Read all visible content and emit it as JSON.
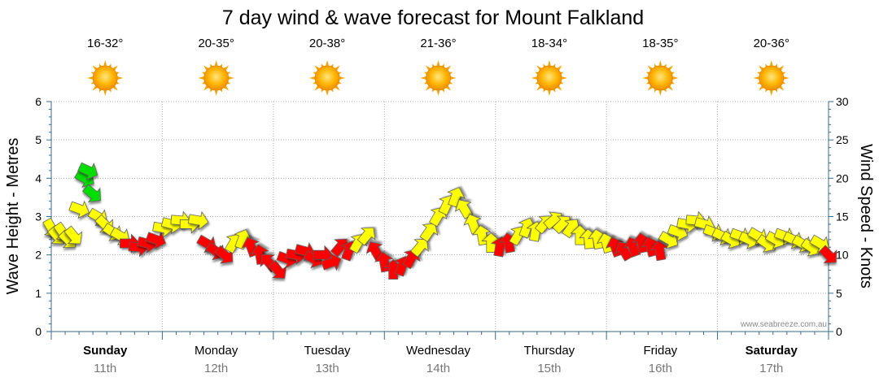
{
  "chart_data": {
    "type": "line",
    "title": "7 day wind & wave forecast for Mount Falkland",
    "ylabel_left": "Wave Height - Metres",
    "ylabel_right": "Wind Speed - Knots",
    "ylim_left": [
      0,
      6
    ],
    "ylim_right": [
      0,
      30
    ],
    "yticks_left": [
      "0",
      "1",
      "2",
      "3",
      "4",
      "5",
      "6"
    ],
    "yticks_right": [
      "0",
      "5",
      "10",
      "15",
      "20",
      "25",
      "30"
    ],
    "grid": true,
    "watermark": "www.seabreeze.com.au",
    "days": [
      {
        "day": "Sunday",
        "date": "11th",
        "temp": "16-32°",
        "icon": "sun-icon",
        "bold": true
      },
      {
        "day": "Monday",
        "date": "12th",
        "temp": "20-35°",
        "icon": "sun-icon",
        "bold": false
      },
      {
        "day": "Tuesday",
        "date": "13th",
        "temp": "20-38°",
        "icon": "sun-icon",
        "bold": false
      },
      {
        "day": "Wednesday",
        "date": "14th",
        "temp": "21-36°",
        "icon": "sun-icon",
        "bold": false
      },
      {
        "day": "Thursday",
        "date": "15th",
        "temp": "18-34°",
        "icon": "sun-icon",
        "bold": false
      },
      {
        "day": "Friday",
        "date": "16th",
        "temp": "18-35°",
        "icon": "sun-icon",
        "bold": false
      },
      {
        "day": "Saturday",
        "date": "17th",
        "temp": "20-36°",
        "icon": "sun-icon",
        "bold": true
      }
    ],
    "colors": {
      "light": "#ff0000",
      "moderate": "#ffff00",
      "strong": "#00dd00",
      "grid": "#aaaaaa",
      "axis": "#3a6b8c"
    },
    "wind_series": {
      "name": "Wind Speed - Knots",
      "points": [
        {
          "t": 0.0,
          "knots": 13.5,
          "dir": 330,
          "cat": "moderate"
        },
        {
          "t": 0.05,
          "knots": 12.5,
          "dir": 320,
          "cat": "moderate"
        },
        {
          "t": 0.1,
          "knots": 13.0,
          "dir": 325,
          "cat": "moderate"
        },
        {
          "t": 0.15,
          "knots": 12.0,
          "dir": 315,
          "cat": "moderate"
        },
        {
          "t": 0.2,
          "knots": 12.5,
          "dir": 320,
          "cat": "moderate"
        },
        {
          "t": 0.25,
          "knots": 16.0,
          "dir": 290,
          "cat": "moderate"
        },
        {
          "t": 0.3,
          "knots": 20.0,
          "dir": 300,
          "cat": "strong"
        },
        {
          "t": 0.33,
          "knots": 21.0,
          "dir": 295,
          "cat": "strong"
        },
        {
          "t": 0.37,
          "knots": 18.0,
          "dir": 310,
          "cat": "strong"
        },
        {
          "t": 0.42,
          "knots": 15.0,
          "dir": 300,
          "cat": "moderate"
        },
        {
          "t": 0.48,
          "knots": 14.0,
          "dir": 315,
          "cat": "moderate"
        },
        {
          "t": 0.55,
          "knots": 13.0,
          "dir": 305,
          "cat": "moderate"
        },
        {
          "t": 0.62,
          "knots": 12.5,
          "dir": 300,
          "cat": "moderate"
        },
        {
          "t": 0.7,
          "knots": 11.5,
          "dir": 270,
          "cat": "light"
        },
        {
          "t": 0.78,
          "knots": 11.0,
          "dir": 275,
          "cat": "light"
        },
        {
          "t": 0.86,
          "knots": 11.5,
          "dir": 285,
          "cat": "light"
        },
        {
          "t": 0.94,
          "knots": 12.0,
          "dir": 290,
          "cat": "light"
        },
        {
          "t": 1.0,
          "knots": 13.5,
          "dir": 280,
          "cat": "moderate"
        },
        {
          "t": 1.08,
          "knots": 14.0,
          "dir": 285,
          "cat": "moderate"
        },
        {
          "t": 1.16,
          "knots": 14.5,
          "dir": 275,
          "cat": "moderate"
        },
        {
          "t": 1.24,
          "knots": 14.0,
          "dir": 270,
          "cat": "moderate"
        },
        {
          "t": 1.32,
          "knots": 14.5,
          "dir": 280,
          "cat": "moderate"
        },
        {
          "t": 1.4,
          "knots": 11.5,
          "dir": 300,
          "cat": "light"
        },
        {
          "t": 1.48,
          "knots": 10.5,
          "dir": 305,
          "cat": "light"
        },
        {
          "t": 1.56,
          "knots": 10.0,
          "dir": 310,
          "cat": "light"
        },
        {
          "t": 1.64,
          "knots": 11.5,
          "dir": 210,
          "cat": "moderate"
        },
        {
          "t": 1.72,
          "knots": 12.0,
          "dir": 200,
          "cat": "moderate"
        },
        {
          "t": 1.8,
          "knots": 11.0,
          "dir": 160,
          "cat": "light"
        },
        {
          "t": 1.88,
          "knots": 10.0,
          "dir": 170,
          "cat": "light"
        },
        {
          "t": 1.96,
          "knots": 9.0,
          "dir": 140,
          "cat": "light"
        },
        {
          "t": 2.04,
          "knots": 8.0,
          "dir": 320,
          "cat": "light"
        },
        {
          "t": 2.12,
          "knots": 9.5,
          "dir": 290,
          "cat": "light"
        },
        {
          "t": 2.2,
          "knots": 10.0,
          "dir": 280,
          "cat": "light"
        },
        {
          "t": 2.28,
          "knots": 10.5,
          "dir": 285,
          "cat": "light"
        },
        {
          "t": 2.36,
          "knots": 9.5,
          "dir": 300,
          "cat": "light"
        },
        {
          "t": 2.44,
          "knots": 10.0,
          "dir": 270,
          "cat": "light"
        },
        {
          "t": 2.52,
          "knots": 9.0,
          "dir": 250,
          "cat": "light"
        },
        {
          "t": 2.6,
          "knots": 11.0,
          "dir": 220,
          "cat": "light"
        },
        {
          "t": 2.68,
          "knots": 10.5,
          "dir": 200,
          "cat": "light"
        },
        {
          "t": 2.76,
          "knots": 11.5,
          "dir": 210,
          "cat": "moderate"
        },
        {
          "t": 2.84,
          "knots": 12.5,
          "dir": 220,
          "cat": "moderate"
        },
        {
          "t": 2.92,
          "knots": 10.5,
          "dir": 150,
          "cat": "light"
        },
        {
          "t": 3.0,
          "knots": 9.0,
          "dir": 170,
          "cat": "light"
        },
        {
          "t": 3.08,
          "knots": 8.0,
          "dir": 180,
          "cat": "light"
        },
        {
          "t": 3.16,
          "knots": 8.5,
          "dir": 200,
          "cat": "light"
        },
        {
          "t": 3.24,
          "knots": 9.5,
          "dir": 210,
          "cat": "light"
        },
        {
          "t": 3.32,
          "knots": 11.0,
          "dir": 220,
          "cat": "moderate"
        },
        {
          "t": 3.4,
          "knots": 13.0,
          "dir": 215,
          "cat": "moderate"
        },
        {
          "t": 3.48,
          "knots": 15.0,
          "dir": 210,
          "cat": "moderate"
        },
        {
          "t": 3.56,
          "knots": 16.5,
          "dir": 205,
          "cat": "moderate"
        },
        {
          "t": 3.64,
          "knots": 17.5,
          "dir": 200,
          "cat": "moderate"
        },
        {
          "t": 3.72,
          "knots": 16.0,
          "dir": 150,
          "cat": "moderate"
        },
        {
          "t": 3.8,
          "knots": 14.0,
          "dir": 160,
          "cat": "moderate"
        },
        {
          "t": 3.88,
          "knots": 12.5,
          "dir": 170,
          "cat": "moderate"
        },
        {
          "t": 3.96,
          "knots": 11.5,
          "dir": 180,
          "cat": "moderate"
        },
        {
          "t": 4.04,
          "knots": 11.0,
          "dir": 190,
          "cat": "light"
        },
        {
          "t": 4.12,
          "knots": 11.5,
          "dir": 170,
          "cat": "light"
        },
        {
          "t": 4.2,
          "knots": 12.5,
          "dir": 210,
          "cat": "moderate"
        },
        {
          "t": 4.28,
          "knots": 13.5,
          "dir": 200,
          "cat": "moderate"
        },
        {
          "t": 4.36,
          "knots": 13.0,
          "dir": 190,
          "cat": "moderate"
        },
        {
          "t": 4.44,
          "knots": 14.0,
          "dir": 220,
          "cat": "moderate"
        },
        {
          "t": 4.52,
          "knots": 14.5,
          "dir": 230,
          "cat": "moderate"
        },
        {
          "t": 4.6,
          "knots": 14.0,
          "dir": 225,
          "cat": "moderate"
        },
        {
          "t": 4.68,
          "knots": 13.5,
          "dir": 215,
          "cat": "moderate"
        },
        {
          "t": 4.76,
          "knots": 12.5,
          "dir": 180,
          "cat": "moderate"
        },
        {
          "t": 4.84,
          "knots": 12.0,
          "dir": 175,
          "cat": "moderate"
        },
        {
          "t": 4.92,
          "knots": 12.0,
          "dir": 170,
          "cat": "moderate"
        },
        {
          "t": 5.0,
          "knots": 11.5,
          "dir": 165,
          "cat": "moderate"
        },
        {
          "t": 5.08,
          "knots": 11.0,
          "dir": 160,
          "cat": "light"
        },
        {
          "t": 5.16,
          "knots": 10.5,
          "dir": 150,
          "cat": "light"
        },
        {
          "t": 5.24,
          "knots": 11.0,
          "dir": 160,
          "cat": "light"
        },
        {
          "t": 5.32,
          "knots": 11.5,
          "dir": 170,
          "cat": "light"
        },
        {
          "t": 5.4,
          "knots": 11.0,
          "dir": 165,
          "cat": "light"
        },
        {
          "t": 5.48,
          "knots": 10.5,
          "dir": 170,
          "cat": "light"
        },
        {
          "t": 5.56,
          "knots": 12.0,
          "dir": 300,
          "cat": "moderate"
        },
        {
          "t": 5.64,
          "knots": 13.0,
          "dir": 290,
          "cat": "moderate"
        },
        {
          "t": 5.72,
          "knots": 14.0,
          "dir": 280,
          "cat": "moderate"
        },
        {
          "t": 5.8,
          "knots": 14.5,
          "dir": 275,
          "cat": "moderate"
        },
        {
          "t": 5.88,
          "knots": 14.0,
          "dir": 285,
          "cat": "moderate"
        },
        {
          "t": 5.96,
          "knots": 13.0,
          "dir": 290,
          "cat": "moderate"
        },
        {
          "t": 6.04,
          "knots": 12.5,
          "dir": 295,
          "cat": "moderate"
        },
        {
          "t": 6.12,
          "knots": 12.0,
          "dir": 300,
          "cat": "moderate"
        },
        {
          "t": 6.2,
          "knots": 12.5,
          "dir": 290,
          "cat": "moderate"
        },
        {
          "t": 6.28,
          "knots": 12.0,
          "dir": 295,
          "cat": "moderate"
        },
        {
          "t": 6.36,
          "knots": 12.5,
          "dir": 300,
          "cat": "moderate"
        },
        {
          "t": 6.44,
          "knots": 11.5,
          "dir": 305,
          "cat": "moderate"
        },
        {
          "t": 6.52,
          "knots": 12.0,
          "dir": 300,
          "cat": "moderate"
        },
        {
          "t": 6.6,
          "knots": 12.5,
          "dir": 290,
          "cat": "moderate"
        },
        {
          "t": 6.68,
          "knots": 12.0,
          "dir": 295,
          "cat": "moderate"
        },
        {
          "t": 6.76,
          "knots": 11.5,
          "dir": 300,
          "cat": "moderate"
        },
        {
          "t": 6.84,
          "knots": 11.0,
          "dir": 305,
          "cat": "moderate"
        },
        {
          "t": 6.92,
          "knots": 11.5,
          "dir": 300,
          "cat": "moderate"
        },
        {
          "t": 7.0,
          "knots": 10.0,
          "dir": 315,
          "cat": "light"
        }
      ]
    }
  }
}
